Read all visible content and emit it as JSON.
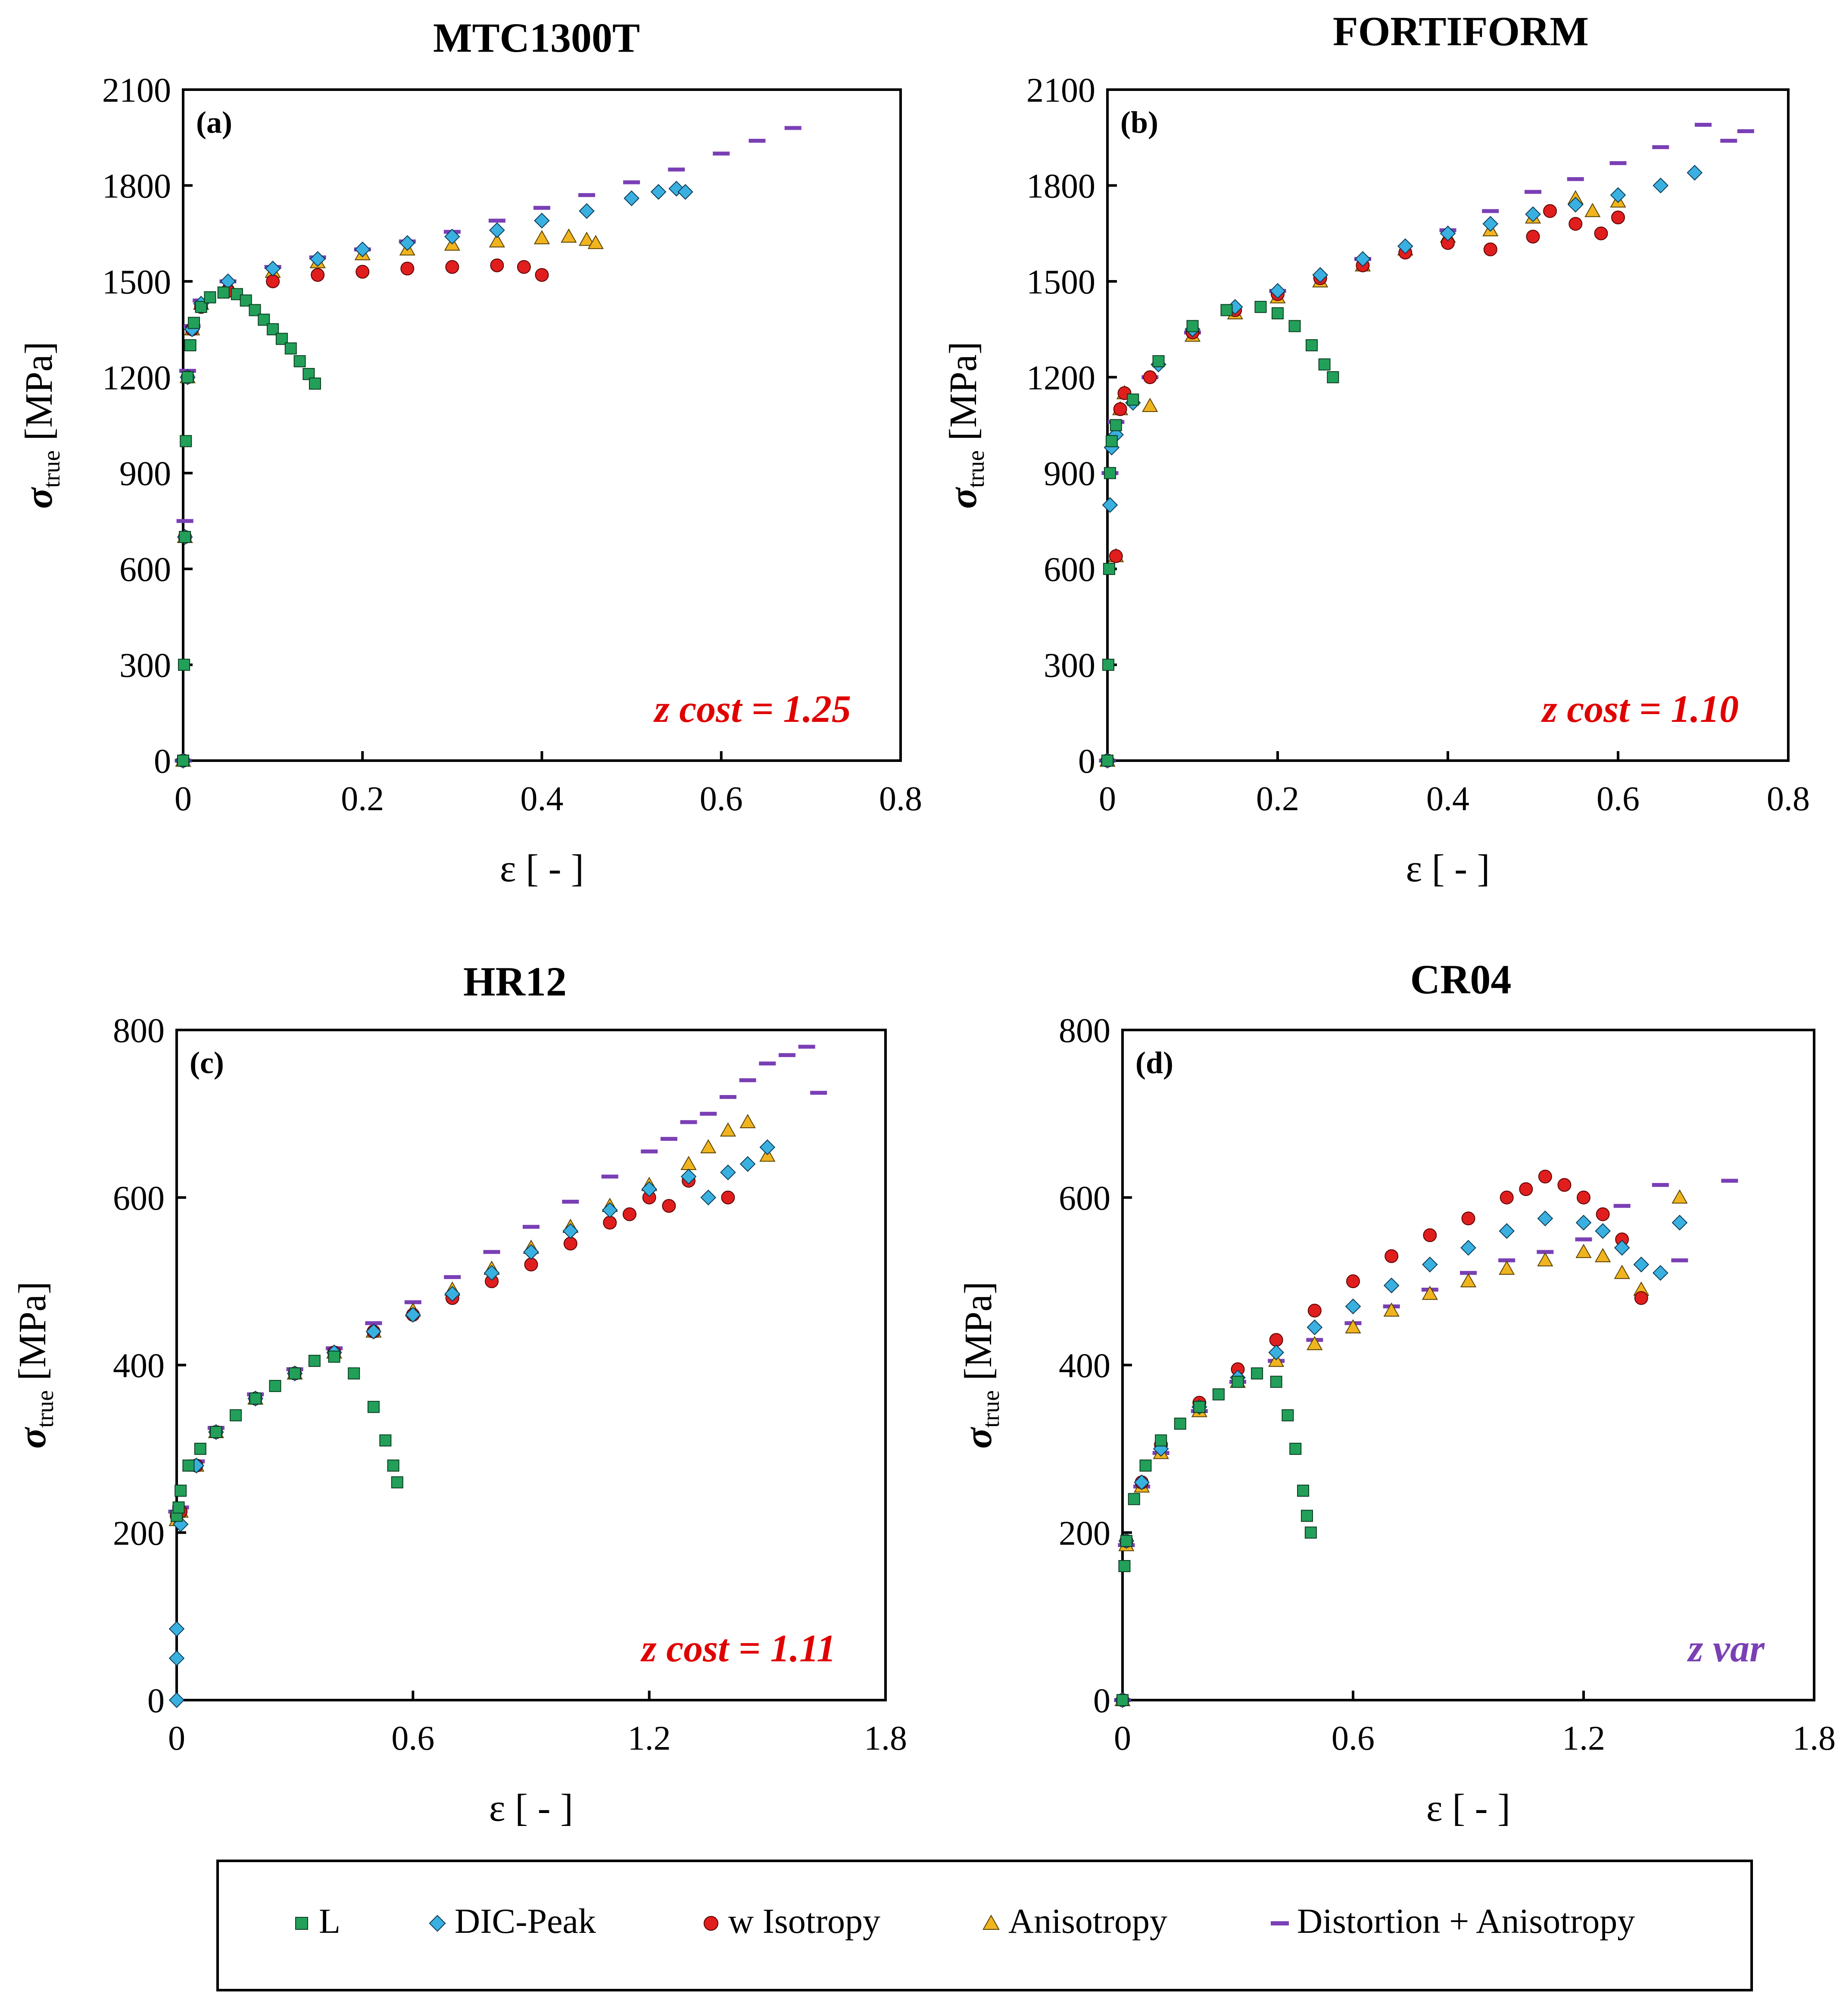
{
  "legend": [
    {
      "key": "L",
      "label": "L",
      "color": "#22a05a",
      "marker": "square"
    },
    {
      "key": "DIC",
      "label": "DIC-Peak",
      "color": "#3ab0e0",
      "marker": "diamond"
    },
    {
      "key": "ISO",
      "label": "w Isotropy",
      "color": "#e01e1e",
      "marker": "circle"
    },
    {
      "key": "ANI",
      "label": "Anisotropy",
      "color": "#f0b41e",
      "marker": "triangle"
    },
    {
      "key": "DIST",
      "label": "Distortion + Anisotropy",
      "color": "#7a3fb5",
      "marker": "dash"
    }
  ],
  "chart_data": [
    {
      "type": "scatter",
      "panel_label": "(a)",
      "title": "MTC1300T",
      "xlabel": "ε [ - ]",
      "ylabel_main": "σ",
      "ylabel_sub": "true",
      "ylabel_unit": " [MPa]",
      "annotation": "z cost = 1.25",
      "annotation_color": "#e00000",
      "xlim": [
        0,
        0.8
      ],
      "ylim": [
        0,
        2100
      ],
      "xticks": [
        "0",
        "0.2",
        "0.4",
        "0.6",
        "0.8"
      ],
      "xtick_values": [
        0,
        0.2,
        0.4,
        0.6,
        0.8
      ],
      "yticks": [
        "0",
        "300",
        "600",
        "900",
        "1200",
        "1500",
        "1800",
        "2100"
      ],
      "ytick_values": [
        0,
        300,
        600,
        900,
        1200,
        1500,
        1800,
        2100
      ],
      "series": [
        {
          "key": "L",
          "x": [
            0,
            0.001,
            0.002,
            0.003,
            0.005,
            0.008,
            0.012,
            0.02,
            0.03,
            0.045,
            0.06,
            0.07,
            0.08,
            0.09,
            0.1,
            0.11,
            0.12,
            0.13,
            0.14,
            0.147
          ],
          "y": [
            0,
            300,
            700,
            1000,
            1200,
            1300,
            1370,
            1420,
            1450,
            1465,
            1460,
            1440,
            1410,
            1380,
            1350,
            1320,
            1290,
            1250,
            1210,
            1180
          ]
        },
        {
          "key": "DIC",
          "x": [
            0,
            0.002,
            0.005,
            0.01,
            0.02,
            0.05,
            0.1,
            0.15,
            0.2,
            0.25,
            0.3,
            0.35,
            0.4,
            0.45,
            0.5,
            0.53,
            0.55,
            0.56
          ],
          "y": [
            0,
            700,
            1200,
            1350,
            1430,
            1500,
            1540,
            1570,
            1600,
            1620,
            1640,
            1660,
            1690,
            1720,
            1760,
            1780,
            1790,
            1780
          ]
        },
        {
          "key": "ISO",
          "x": [
            0,
            0.002,
            0.005,
            0.01,
            0.02,
            0.05,
            0.1,
            0.15,
            0.2,
            0.25,
            0.3,
            0.35,
            0.38,
            0.4
          ],
          "y": [
            0,
            700,
            1200,
            1350,
            1420,
            1470,
            1500,
            1520,
            1530,
            1540,
            1545,
            1550,
            1545,
            1520
          ]
        },
        {
          "key": "ANI",
          "x": [
            0,
            0.002,
            0.005,
            0.01,
            0.02,
            0.05,
            0.1,
            0.15,
            0.2,
            0.25,
            0.3,
            0.35,
            0.4,
            0.43,
            0.45,
            0.46
          ],
          "y": [
            0,
            700,
            1200,
            1350,
            1430,
            1490,
            1530,
            1560,
            1585,
            1600,
            1615,
            1625,
            1635,
            1640,
            1630,
            1620
          ]
        },
        {
          "key": "DIST",
          "x": [
            0,
            0.002,
            0.005,
            0.01,
            0.02,
            0.05,
            0.1,
            0.15,
            0.2,
            0.25,
            0.3,
            0.35,
            0.4,
            0.45,
            0.5,
            0.55,
            0.6,
            0.64,
            0.68
          ],
          "y": [
            0,
            750,
            1220,
            1360,
            1440,
            1500,
            1545,
            1575,
            1600,
            1625,
            1655,
            1690,
            1730,
            1770,
            1810,
            1850,
            1900,
            1940,
            1980
          ]
        }
      ]
    },
    {
      "type": "scatter",
      "panel_label": "(b)",
      "title": "FORTIFORM",
      "xlabel": "ε [ - ]",
      "ylabel_main": "σ",
      "ylabel_sub": "true",
      "ylabel_unit": " [MPa]",
      "annotation": "z cost = 1.10",
      "annotation_color": "#e00000",
      "xlim": [
        0,
        0.8
      ],
      "ylim": [
        0,
        2100
      ],
      "xticks": [
        "0",
        "0.2",
        "0.4",
        "0.6",
        "0.8"
      ],
      "xtick_values": [
        0,
        0.2,
        0.4,
        0.6,
        0.8
      ],
      "yticks": [
        "0",
        "300",
        "600",
        "900",
        "1200",
        "1500",
        "1800",
        "2100"
      ],
      "ytick_values": [
        0,
        300,
        600,
        900,
        1200,
        1500,
        1800,
        2100
      ],
      "series": [
        {
          "key": "L",
          "x": [
            0,
            0.001,
            0.002,
            0.003,
            0.005,
            0.01,
            0.03,
            0.06,
            0.1,
            0.14,
            0.18,
            0.2,
            0.22,
            0.24,
            0.255,
            0.265
          ],
          "y": [
            0,
            300,
            600,
            900,
            1000,
            1050,
            1130,
            1250,
            1360,
            1410,
            1420,
            1400,
            1360,
            1300,
            1240,
            1200
          ]
        },
        {
          "key": "DIC",
          "x": [
            0,
            0.003,
            0.005,
            0.01,
            0.03,
            0.06,
            0.1,
            0.15,
            0.2,
            0.25,
            0.3,
            0.35,
            0.4,
            0.45,
            0.5,
            0.55,
            0.6,
            0.65,
            0.69
          ],
          "y": [
            0,
            800,
            980,
            1020,
            1120,
            1240,
            1350,
            1420,
            1470,
            1520,
            1570,
            1610,
            1650,
            1680,
            1710,
            1740,
            1770,
            1800,
            1840
          ]
        },
        {
          "key": "ISO",
          "x": [
            0,
            0.01,
            0.015,
            0.02,
            0.05,
            0.1,
            0.15,
            0.2,
            0.25,
            0.3,
            0.35,
            0.4,
            0.45,
            0.5,
            0.52,
            0.55,
            0.58,
            0.6
          ],
          "y": [
            0,
            640,
            1100,
            1150,
            1200,
            1340,
            1410,
            1460,
            1510,
            1550,
            1590,
            1620,
            1600,
            1640,
            1720,
            1680,
            1650,
            1700
          ]
        },
        {
          "key": "ANI",
          "x": [
            0,
            0.01,
            0.015,
            0.02,
            0.05,
            0.1,
            0.15,
            0.2,
            0.25,
            0.3,
            0.35,
            0.4,
            0.45,
            0.5,
            0.55,
            0.57,
            0.6
          ],
          "y": [
            0,
            640,
            1100,
            1150,
            1110,
            1330,
            1400,
            1450,
            1500,
            1550,
            1600,
            1640,
            1660,
            1700,
            1760,
            1720,
            1750
          ]
        },
        {
          "key": "DIST",
          "x": [
            0,
            0.003,
            0.01,
            0.05,
            0.1,
            0.2,
            0.3,
            0.4,
            0.45,
            0.5,
            0.55,
            0.6,
            0.65,
            0.7,
            0.73,
            0.75
          ],
          "y": [
            0,
            900,
            1060,
            1200,
            1340,
            1470,
            1570,
            1660,
            1720,
            1780,
            1820,
            1870,
            1920,
            1990,
            1940,
            1970
          ]
        }
      ]
    },
    {
      "type": "scatter",
      "panel_label": "(c)",
      "title": "HR12",
      "xlabel": "ε [ - ]",
      "ylabel_main": "σ",
      "ylabel_sub": "true",
      "ylabel_unit": " [MPa]",
      "annotation": "z cost = 1.11",
      "annotation_color": "#e00000",
      "xlim": [
        0,
        1.8
      ],
      "ylim": [
        0,
        800
      ],
      "xticks": [
        "0",
        "0.6",
        "1.2",
        "1.8"
      ],
      "xtick_values": [
        0,
        0.6,
        1.2,
        1.8
      ],
      "yticks": [
        "0",
        "200",
        "400",
        "600",
        "800"
      ],
      "ytick_values": [
        0,
        200,
        400,
        600,
        800
      ],
      "series": [
        {
          "key": "L",
          "x": [
            0,
            0.005,
            0.01,
            0.03,
            0.06,
            0.1,
            0.15,
            0.2,
            0.25,
            0.3,
            0.35,
            0.4,
            0.45,
            0.5,
            0.53,
            0.55,
            0.56
          ],
          "y": [
            220,
            230,
            250,
            280,
            300,
            320,
            340,
            360,
            375,
            390,
            405,
            410,
            390,
            350,
            310,
            280,
            260
          ]
        },
        {
          "key": "DIC",
          "x": [
            0,
            0,
            0,
            0.01,
            0.05,
            0.1,
            0.2,
            0.3,
            0.4,
            0.5,
            0.6,
            0.7,
            0.8,
            0.9,
            1.0,
            1.1,
            1.2,
            1.3,
            1.35,
            1.4,
            1.45,
            1.5
          ],
          "y": [
            0,
            50,
            85,
            210,
            280,
            320,
            360,
            390,
            415,
            440,
            460,
            485,
            510,
            535,
            560,
            585,
            610,
            625,
            600,
            630,
            640,
            660
          ]
        },
        {
          "key": "ISO",
          "x": [
            0,
            0.01,
            0.05,
            0.1,
            0.2,
            0.3,
            0.4,
            0.5,
            0.6,
            0.7,
            0.8,
            0.9,
            1.0,
            1.1,
            1.15,
            1.2,
            1.25,
            1.3,
            1.4
          ],
          "y": [
            220,
            225,
            280,
            320,
            360,
            390,
            415,
            440,
            460,
            480,
            500,
            520,
            545,
            570,
            580,
            600,
            590,
            620,
            600
          ]
        },
        {
          "key": "ANI",
          "x": [
            0,
            0.01,
            0.05,
            0.1,
            0.2,
            0.3,
            0.4,
            0.5,
            0.6,
            0.7,
            0.8,
            0.9,
            1.0,
            1.1,
            1.2,
            1.3,
            1.35,
            1.4,
            1.45,
            1.5
          ],
          "y": [
            215,
            225,
            280,
            320,
            360,
            390,
            415,
            440,
            465,
            490,
            515,
            540,
            565,
            590,
            615,
            640,
            660,
            680,
            690,
            650
          ]
        },
        {
          "key": "DIST",
          "x": [
            0,
            0.01,
            0.05,
            0.1,
            0.2,
            0.3,
            0.4,
            0.5,
            0.6,
            0.7,
            0.8,
            0.9,
            1.0,
            1.1,
            1.2,
            1.25,
            1.3,
            1.35,
            1.4,
            1.45,
            1.5,
            1.55,
            1.6,
            1.63
          ],
          "y": [
            225,
            230,
            285,
            325,
            365,
            395,
            420,
            450,
            475,
            505,
            535,
            565,
            595,
            625,
            655,
            670,
            690,
            700,
            720,
            740,
            760,
            770,
            780,
            725
          ]
        }
      ]
    },
    {
      "type": "scatter",
      "panel_label": "(d)",
      "title": "CR04",
      "xlabel": "ε [ - ]",
      "ylabel_main": "σ",
      "ylabel_sub": "true",
      "ylabel_unit": " [MPa]",
      "annotation": "z var",
      "annotation_color": "#7a3fb5",
      "xlim": [
        0,
        1.8
      ],
      "ylim": [
        0,
        800
      ],
      "xticks": [
        "0",
        "0.6",
        "1.2",
        "1.8"
      ],
      "xtick_values": [
        0,
        0.6,
        1.2,
        1.8
      ],
      "yticks": [
        "0",
        "200",
        "400",
        "600",
        "800"
      ],
      "ytick_values": [
        0,
        200,
        400,
        600,
        800
      ],
      "series": [
        {
          "key": "L",
          "x": [
            0,
            0.005,
            0.01,
            0.03,
            0.06,
            0.1,
            0.15,
            0.2,
            0.25,
            0.3,
            0.35,
            0.4,
            0.43,
            0.45,
            0.47,
            0.48,
            0.49
          ],
          "y": [
            0,
            160,
            190,
            240,
            280,
            310,
            330,
            350,
            365,
            380,
            390,
            380,
            340,
            300,
            250,
            220,
            200
          ]
        },
        {
          "key": "DIC",
          "x": [
            0,
            0.01,
            0.05,
            0.1,
            0.2,
            0.3,
            0.4,
            0.5,
            0.6,
            0.7,
            0.8,
            0.9,
            1.0,
            1.1,
            1.2,
            1.25,
            1.3,
            1.35,
            1.4,
            1.45
          ],
          "y": [
            0,
            190,
            260,
            300,
            350,
            385,
            415,
            445,
            470,
            495,
            520,
            540,
            560,
            575,
            570,
            560,
            540,
            520,
            510,
            570
          ]
        },
        {
          "key": "ISO",
          "x": [
            0,
            0.01,
            0.05,
            0.1,
            0.2,
            0.3,
            0.4,
            0.5,
            0.6,
            0.7,
            0.8,
            0.9,
            1.0,
            1.05,
            1.1,
            1.15,
            1.2,
            1.25,
            1.3,
            1.35
          ],
          "y": [
            0,
            190,
            260,
            305,
            355,
            395,
            430,
            465,
            500,
            530,
            555,
            575,
            600,
            610,
            625,
            615,
            600,
            580,
            550,
            480
          ]
        },
        {
          "key": "ANI",
          "x": [
            0,
            0.01,
            0.05,
            0.1,
            0.2,
            0.3,
            0.4,
            0.5,
            0.6,
            0.7,
            0.8,
            0.9,
            1.0,
            1.1,
            1.2,
            1.25,
            1.3,
            1.35,
            1.45
          ],
          "y": [
            0,
            185,
            255,
            295,
            345,
            380,
            405,
            425,
            445,
            465,
            485,
            500,
            515,
            525,
            535,
            530,
            510,
            490,
            600
          ]
        },
        {
          "key": "DIST",
          "x": [
            0,
            0.01,
            0.05,
            0.1,
            0.2,
            0.3,
            0.4,
            0.5,
            0.6,
            0.7,
            0.8,
            0.9,
            1.0,
            1.1,
            1.2,
            1.3,
            1.4,
            1.45,
            1.58
          ],
          "y": [
            0,
            185,
            255,
            295,
            345,
            380,
            405,
            430,
            450,
            470,
            490,
            510,
            525,
            535,
            550,
            590,
            615,
            525,
            620
          ]
        }
      ]
    }
  ]
}
